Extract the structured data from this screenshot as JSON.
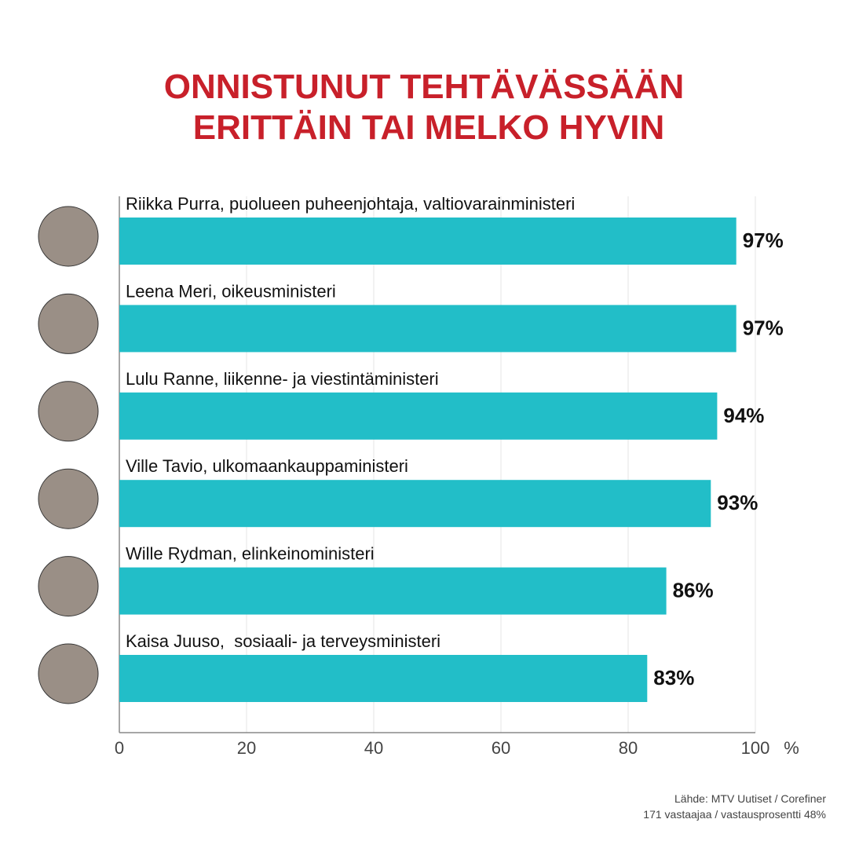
{
  "chart_data": {
    "type": "bar",
    "orientation": "horizontal",
    "title": [
      "ONNISTUNUT TEHTÄVÄSSÄÄN",
      "ERITTÄIN TAI MELKO HYVIN"
    ],
    "categories": [
      "Riikka Purra, puolueen puheenjohtaja, valtiovarainministeri",
      "Leena Meri, oikeusministeri",
      "Lulu Ranne, liikenne- ja viestintäministeri",
      "Ville Tavio, ulkomaankauppaministeri",
      "Wille Rydman, elinkeinoministeri",
      "Kaisa Juuso,  sosiaali- ja terveysministeri"
    ],
    "values": [
      97,
      97,
      94,
      93,
      86,
      83
    ],
    "value_labels": [
      "97%",
      "97%",
      "94%",
      "93%",
      "86%",
      "83%"
    ],
    "color": "#22bec8",
    "xlim": [
      0,
      100
    ],
    "xticks": [
      0,
      20,
      40,
      60,
      80,
      100
    ],
    "xlabel": "%",
    "grid": true,
    "source": [
      "Lähde: MTV Uutiset / Corefiner",
      "171 vastaajaa / vastausprosentti 48%"
    ]
  }
}
